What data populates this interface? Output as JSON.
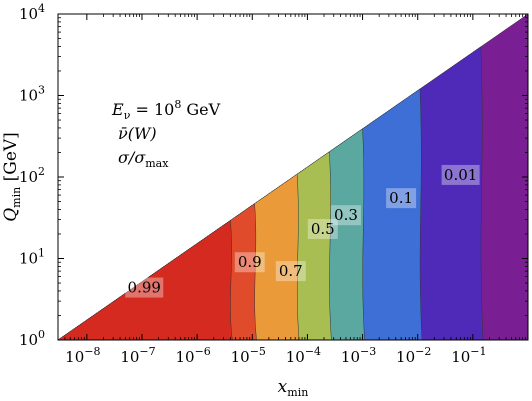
{
  "chart_data": {
    "type": "contour",
    "xaxis": {
      "label_main": "x",
      "label_sub": "min",
      "scale": "log",
      "range": [
        3e-09,
        1
      ],
      "tick_exponents": [
        -8,
        -7,
        -6,
        -5,
        -4,
        -3,
        -2,
        -1
      ],
      "tick_base": "10"
    },
    "yaxis": {
      "label_main": "Q",
      "label_sub": "min",
      "label_unit": " [GeV]",
      "scale": "log",
      "range": [
        1,
        10000
      ],
      "tick_exponents": [
        0,
        1,
        2,
        3,
        4
      ],
      "tick_base": "10"
    },
    "annotation": {
      "line1": "E",
      "line1_sub": "ν",
      "line1_rest": " = 10",
      "line1_sup": "8",
      "line1_unit": " GeV",
      "line2": "ν̄(W)",
      "line3_a": "σ/σ",
      "line3_sub": "max"
    },
    "levels": [
      {
        "label": "0.99",
        "color": "#d42a1f",
        "boundary_x": 4e-06,
        "label_x": 1.1e-07,
        "label_y": 4.4
      },
      {
        "label": "0.9",
        "color": "#e04b2b",
        "boundary_x": 1.1e-05,
        "label_x": 9e-06,
        "label_y": 9
      },
      {
        "label": "0.7",
        "color": "#ea9a38",
        "boundary_x": 6.5e-05,
        "label_x": 5e-05,
        "label_y": 7
      },
      {
        "label": "0.5",
        "color": "#a8bd52",
        "boundary_x": 0.00025,
        "label_x": 0.00019,
        "label_y": 23
      },
      {
        "label": "0.3",
        "color": "#5aa8a0",
        "boundary_x": 0.001,
        "label_x": 0.0005,
        "label_y": 34
      },
      {
        "label": "0.1",
        "color": "#3e6fd6",
        "boundary_x": 0.011,
        "label_x": 0.005,
        "label_y": 55
      },
      {
        "label": "0.01",
        "color": "#4f2ab8",
        "boundary_x": 0.14,
        "label_x": 0.06,
        "label_y": 106
      },
      {
        "label": "",
        "color": "#7a1e94",
        "boundary_x": 1,
        "label_x": null,
        "label_y": null
      }
    ],
    "kinematic_limit": {
      "x_at_Q_min": 3e-09,
      "Q_at_x_max": 10000
    }
  }
}
